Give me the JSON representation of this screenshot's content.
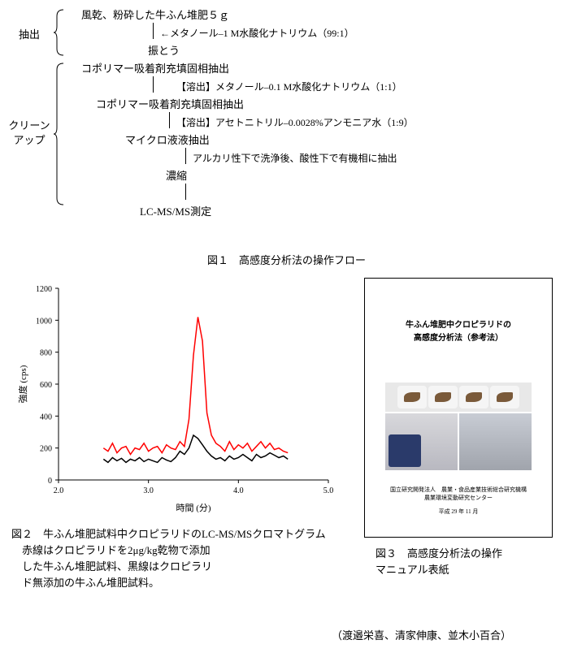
{
  "flow": {
    "extraction_label": "抽出",
    "cleanup_label": "クリーン\nアップ",
    "step1": "風乾、粉砕した牛ふん堆肥５ｇ",
    "note1": "←メタノール–1 M水酸化ナトリウム（99:1）",
    "step2": "振とう",
    "step3": "コポリマー吸着剤充填固相抽出",
    "note3": "【溶出】メタノール–0.1 M水酸化ナトリウム（1:1）",
    "step4": "コポリマー吸着剤充填固相抽出",
    "note4": "【溶出】アセトニトリル–0.0028%アンモニア水（1:9）",
    "step5": "マイクロ液液抽出",
    "note5": "アルカリ性下で洗浄後、酸性下で有機相に抽出",
    "step6": "濃縮",
    "step7": "LC-MS/MS測定"
  },
  "fig1_caption": "図１　高感度分析法の操作フロー",
  "chart": {
    "type": "line",
    "xlabel": "時間 (分)",
    "ylabel": "強度 (cps)",
    "xlim": [
      2.0,
      5.0
    ],
    "ylim": [
      0,
      1200
    ],
    "xticks": [
      2.0,
      3.0,
      4.0,
      5.0
    ],
    "yticks": [
      0,
      200,
      400,
      600,
      800,
      1000,
      1200
    ],
    "label_fontsize": 11,
    "tick_fontsize": 10,
    "background_color": "#ffffff",
    "axis_color": "#000000",
    "series": [
      {
        "name": "spiked",
        "color": "#ff0000",
        "line_width": 1.5,
        "x": [
          2.5,
          2.55,
          2.6,
          2.65,
          2.7,
          2.75,
          2.8,
          2.85,
          2.9,
          2.95,
          3.0,
          3.05,
          3.1,
          3.15,
          3.2,
          3.25,
          3.3,
          3.35,
          3.4,
          3.45,
          3.5,
          3.55,
          3.6,
          3.65,
          3.7,
          3.75,
          3.8,
          3.85,
          3.9,
          3.95,
          4.0,
          4.05,
          4.1,
          4.15,
          4.2,
          4.25,
          4.3,
          4.35,
          4.4,
          4.45,
          4.5,
          4.55
        ],
        "y": [
          200,
          180,
          230,
          170,
          200,
          210,
          160,
          200,
          190,
          230,
          180,
          200,
          210,
          170,
          220,
          200,
          190,
          240,
          210,
          380,
          780,
          1020,
          870,
          420,
          280,
          230,
          210,
          180,
          240,
          190,
          220,
          200,
          230,
          180,
          210,
          240,
          200,
          230,
          190,
          200,
          180,
          170
        ]
      },
      {
        "name": "blank",
        "color": "#000000",
        "line_width": 1.5,
        "x": [
          2.5,
          2.55,
          2.6,
          2.65,
          2.7,
          2.75,
          2.8,
          2.85,
          2.9,
          2.95,
          3.0,
          3.05,
          3.1,
          3.15,
          3.2,
          3.25,
          3.3,
          3.35,
          3.4,
          3.45,
          3.5,
          3.55,
          3.6,
          3.65,
          3.7,
          3.75,
          3.8,
          3.85,
          3.9,
          3.95,
          4.0,
          4.05,
          4.1,
          4.15,
          4.2,
          4.25,
          4.3,
          4.35,
          4.4,
          4.45,
          4.5,
          4.55
        ],
        "y": [
          130,
          110,
          140,
          120,
          135,
          110,
          130,
          120,
          140,
          115,
          130,
          120,
          110,
          140,
          125,
          115,
          140,
          180,
          160,
          200,
          280,
          260,
          220,
          180,
          150,
          130,
          140,
          120,
          150,
          130,
          140,
          160,
          140,
          120,
          160,
          140,
          150,
          170,
          155,
          140,
          150,
          130
        ]
      }
    ]
  },
  "fig2": {
    "title": "図２　牛ふん堆肥試料中クロピラリドのLC-MS/MSクロマトグラム",
    "line1": "　赤線はクロピラリドを2μg/kg乾物で添加",
    "line2": "　した牛ふん堆肥試料、黒線はクロピラリ",
    "line3": "　ド無添加の牛ふん堆肥試料。"
  },
  "manual": {
    "title_line1": "牛ふん堆肥中クロピラリドの",
    "title_line2": "高感度分析法（参考法）",
    "org": "国立研究開発法人　農業・食品産業技術総合研究機構\n農業環境変動研究センター",
    "date": "平成 29 年 11 月"
  },
  "fig3": {
    "title": "図３　高感度分析法の操作",
    "line1": "マニュアル表紙"
  },
  "authors": "（渡邉栄喜、清家伸康、並木小百合）"
}
